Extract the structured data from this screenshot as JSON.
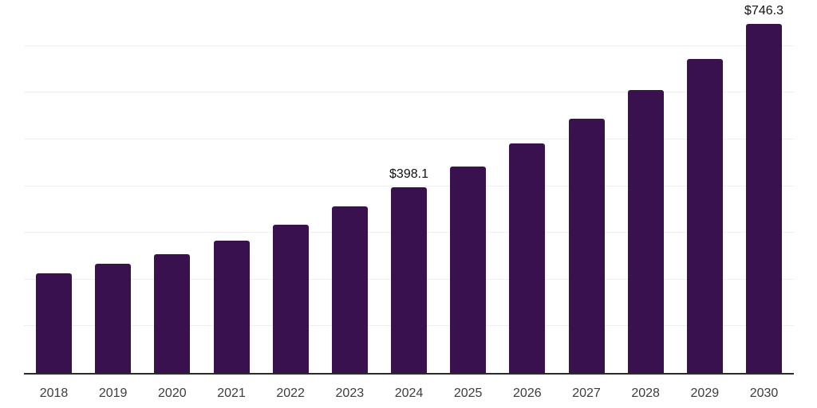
{
  "chart_data": {
    "type": "bar",
    "title": "",
    "xlabel": "",
    "ylabel": "",
    "categories": [
      "2018",
      "2019",
      "2020",
      "2021",
      "2022",
      "2023",
      "2024",
      "2025",
      "2026",
      "2027",
      "2028",
      "2029",
      "2030"
    ],
    "values": [
      213.0,
      234.5,
      254.5,
      284.0,
      317.0,
      355.8,
      398.1,
      442.0,
      491.0,
      544.5,
      605.0,
      672.2,
      746.3
    ],
    "data_labels": [
      {
        "category": "2024",
        "text": "$398.1"
      },
      {
        "category": "2030",
        "text": "$746.3"
      }
    ],
    "ylim": [
      0,
      800
    ],
    "gridline_step": 100,
    "grid": "horizontal",
    "legend": "none",
    "y_tick_labels_shown": false,
    "colors": {
      "bar": "#38114E",
      "axis_line": "#2b2b2b",
      "gridline": "#efefef",
      "value_label": "#111111",
      "tick_label": "#3d3d3d",
      "background": "#ffffff"
    }
  }
}
